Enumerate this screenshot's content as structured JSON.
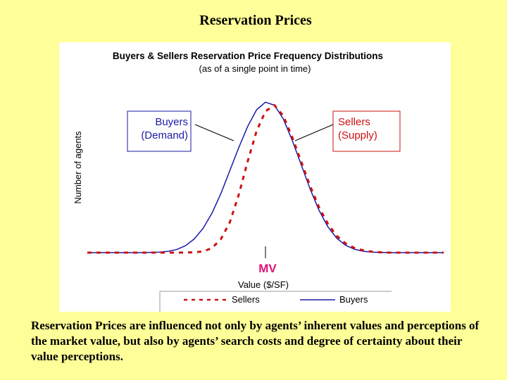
{
  "slide": {
    "title": "Reservation Prices",
    "caption": "Reservation Prices are influenced not only by agents’ inherent values and perceptions of the market value, but also by agents’ search costs and degree of certainty about their value perceptions."
  },
  "chart_data": {
    "type": "line",
    "title": "Buyers & Sellers Reservation Price Frequency Distributions",
    "subtitle": "(as of a single point in time)",
    "xlabel": "Value ($/SF)",
    "ylabel": "Number of agents",
    "x_marker_label": "MV",
    "grid": false,
    "legend_placement": "bottom",
    "series": [
      {
        "name": "Buyers",
        "style": "solid",
        "color": "#1a1aa6",
        "x": [
          -5,
          -4.5,
          -4,
          -3.5,
          -3,
          -2.75,
          -2.5,
          -2.25,
          -2,
          -1.75,
          -1.5,
          -1.25,
          -1,
          -0.75,
          -0.5,
          -0.25,
          0,
          0.25,
          0.5,
          0.75,
          1,
          1.25,
          1.5,
          1.75,
          2,
          2.25,
          2.5,
          2.75,
          3,
          3.5,
          4,
          4.5,
          5
        ],
        "values": [
          0.0,
          0.0,
          0.0,
          0.0,
          0.003,
          0.008,
          0.02,
          0.045,
          0.09,
          0.16,
          0.26,
          0.39,
          0.54,
          0.69,
          0.83,
          0.94,
          0.99,
          0.97,
          0.88,
          0.74,
          0.58,
          0.42,
          0.28,
          0.17,
          0.095,
          0.048,
          0.022,
          0.009,
          0.003,
          0.0,
          0.0,
          0.0,
          0.0
        ]
      },
      {
        "name": "Sellers",
        "style": "dashed",
        "color": "#cc1111",
        "x": [
          -5,
          -4.5,
          -4,
          -3.5,
          -3,
          -2.5,
          -2,
          -1.75,
          -1.5,
          -1.25,
          -1,
          -0.75,
          -0.5,
          -0.25,
          0,
          0.25,
          0.5,
          0.75,
          1,
          1.25,
          1.5,
          1.75,
          2,
          2.25,
          2.5,
          2.75,
          3,
          3.25,
          3.5,
          4,
          4.5,
          5
        ],
        "values": [
          0.0,
          0.0,
          0.0,
          0.0,
          0.0,
          0.0,
          0.002,
          0.008,
          0.03,
          0.09,
          0.2,
          0.38,
          0.6,
          0.8,
          0.93,
          0.97,
          0.9,
          0.76,
          0.6,
          0.44,
          0.3,
          0.19,
          0.11,
          0.06,
          0.03,
          0.015,
          0.006,
          0.002,
          0.0,
          0.0,
          0.0,
          0.0
        ]
      }
    ],
    "annotations": [
      {
        "series": "Buyers",
        "lines": [
          "Buyers",
          "(Demand)"
        ],
        "box_color": "#1a1aa6",
        "text_color": "#1a1aa6"
      },
      {
        "series": "Sellers",
        "lines": [
          "Sellers",
          "(Supply)"
        ],
        "box_color": "#cc1111",
        "text_color": "#cc1111"
      }
    ],
    "xlim": [
      -5,
      5
    ],
    "ylim": [
      0,
      1
    ],
    "mv_x": 0,
    "colors": {
      "mv_label": "#dd1177",
      "title": "#000000"
    }
  }
}
